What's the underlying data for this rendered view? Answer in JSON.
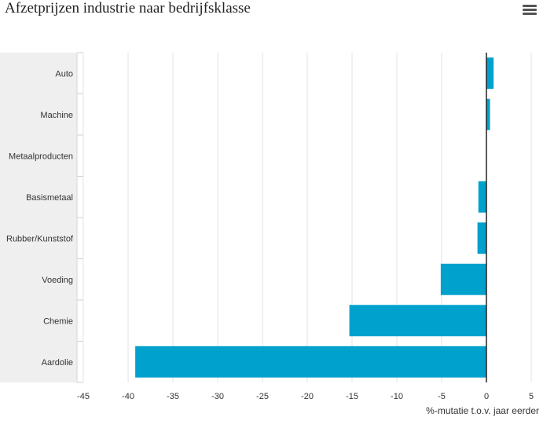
{
  "header": {
    "title": "Afzetprijzen industrie naar bedrijfsklasse",
    "menu_icon": "hamburger-menu-icon"
  },
  "chart_data": {
    "type": "bar",
    "orientation": "horizontal",
    "title": "Afzetprijzen industrie naar bedrijfsklasse",
    "xlabel": "%-mutatie t.o.v. jaar eerder",
    "ylabel": "",
    "xlim": [
      -45,
      5
    ],
    "xticks": [
      -45,
      -40,
      -35,
      -30,
      -25,
      -20,
      -15,
      -10,
      -5,
      0,
      5
    ],
    "categories": [
      "Auto",
      "Machine",
      "Metaalproducten",
      "Basismetaal",
      "Rubber/Kunststof",
      "Voeding",
      "Chemie",
      "Aardolie"
    ],
    "values": [
      0.8,
      0.4,
      0.0,
      -0.9,
      -1.0,
      -5.1,
      -15.3,
      -39.2
    ],
    "bar_color": "#00a1cd",
    "grid": true,
    "legend": "none"
  }
}
